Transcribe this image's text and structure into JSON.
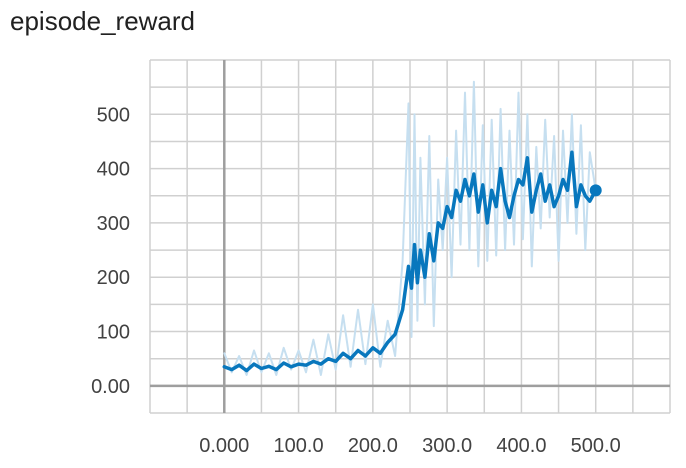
{
  "chart_data": {
    "type": "line",
    "title": "episode_reward",
    "xlabel": "",
    "ylabel": "",
    "xlim": [
      -100,
      600
    ],
    "ylim": [
      -50,
      600
    ],
    "x_ticks": [
      0,
      100,
      200,
      300,
      400,
      500
    ],
    "x_tick_labels": [
      "0.000",
      "100.0",
      "200.0",
      "300.0",
      "400.0",
      "500.0"
    ],
    "y_ticks": [
      0,
      100,
      200,
      300,
      400,
      500
    ],
    "y_tick_labels": [
      "0.00",
      "100",
      "200",
      "300",
      "400",
      "500"
    ],
    "grid": true,
    "series": [
      {
        "role": "raw",
        "color": "#c6dff0",
        "x": [
          0,
          10,
          20,
          30,
          40,
          50,
          60,
          70,
          80,
          90,
          100,
          110,
          120,
          130,
          140,
          150,
          160,
          170,
          180,
          190,
          200,
          210,
          220,
          230,
          240,
          248,
          252,
          256,
          260,
          264,
          270,
          276,
          282,
          288,
          294,
          300,
          306,
          312,
          318,
          324,
          330,
          336,
          342,
          348,
          354,
          360,
          366,
          372,
          378,
          384,
          390,
          396,
          402,
          408,
          414,
          420,
          426,
          432,
          438,
          444,
          450,
          456,
          462,
          468,
          474,
          480,
          486,
          492,
          500
        ],
        "y": [
          60,
          25,
          55,
          20,
          65,
          25,
          60,
          20,
          70,
          30,
          65,
          25,
          85,
          20,
          95,
          30,
          130,
          35,
          140,
          40,
          150,
          35,
          120,
          55,
          230,
          520,
          90,
          500,
          120,
          420,
          150,
          460,
          110,
          380,
          250,
          420,
          200,
          470,
          260,
          540,
          250,
          560,
          220,
          480,
          230,
          490,
          240,
          510,
          250,
          470,
          260,
          540,
          270,
          500,
          220,
          440,
          290,
          490,
          310,
          460,
          230,
          470,
          300,
          500,
          280,
          480,
          250,
          430,
          360
        ]
      },
      {
        "role": "smoothed",
        "color": "#0877bd",
        "x": [
          0,
          10,
          20,
          30,
          40,
          50,
          60,
          70,
          80,
          90,
          100,
          110,
          120,
          130,
          140,
          150,
          160,
          170,
          180,
          190,
          200,
          210,
          220,
          230,
          240,
          248,
          252,
          256,
          260,
          264,
          270,
          276,
          282,
          288,
          294,
          300,
          306,
          312,
          318,
          324,
          330,
          336,
          342,
          348,
          354,
          360,
          366,
          372,
          378,
          384,
          390,
          396,
          402,
          408,
          414,
          420,
          426,
          432,
          438,
          444,
          450,
          456,
          462,
          468,
          474,
          480,
          486,
          492,
          500
        ],
        "y": [
          35,
          30,
          38,
          28,
          40,
          32,
          36,
          30,
          42,
          35,
          40,
          38,
          45,
          40,
          50,
          45,
          60,
          50,
          65,
          55,
          70,
          60,
          80,
          95,
          140,
          220,
          180,
          260,
          190,
          250,
          200,
          280,
          230,
          300,
          290,
          330,
          310,
          360,
          340,
          380,
          350,
          390,
          320,
          370,
          300,
          360,
          330,
          400,
          340,
          310,
          350,
          380,
          370,
          420,
          320,
          360,
          390,
          340,
          370,
          330,
          350,
          380,
          360,
          430,
          330,
          370,
          350,
          340,
          360
        ]
      }
    ]
  }
}
